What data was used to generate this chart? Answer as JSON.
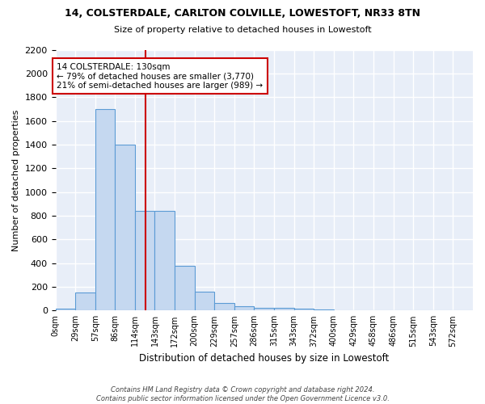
{
  "title1": "14, COLSTERDALE, CARLTON COLVILLE, LOWESTOFT, NR33 8TN",
  "title2": "Size of property relative to detached houses in Lowestoft",
  "xlabel": "Distribution of detached houses by size in Lowestoft",
  "ylabel": "Number of detached properties",
  "bar_labels": [
    "0sqm",
    "29sqm",
    "57sqm",
    "86sqm",
    "114sqm",
    "143sqm",
    "172sqm",
    "200sqm",
    "229sqm",
    "257sqm",
    "286sqm",
    "315sqm",
    "343sqm",
    "372sqm",
    "400sqm",
    "429sqm",
    "458sqm",
    "486sqm",
    "515sqm",
    "543sqm",
    "572sqm"
  ],
  "bar_values": [
    15,
    150,
    1700,
    1400,
    840,
    840,
    380,
    160,
    65,
    35,
    25,
    22,
    15,
    12,
    0,
    0,
    0,
    0,
    0,
    0,
    0
  ],
  "bar_color": "#c5d8f0",
  "bar_edge_color": "#5b9bd5",
  "fig_bg_color": "#ffffff",
  "ax_bg_color": "#e8eef8",
  "grid_color": "#ffffff",
  "vline_color": "#cc0000",
  "annotation_text": "14 COLSTERDALE: 130sqm\n← 79% of detached houses are smaller (3,770)\n21% of semi-detached houses are larger (989) →",
  "annotation_box_facecolor": "#ffffff",
  "annotation_box_edgecolor": "#cc0000",
  "ylim": [
    0,
    2200
  ],
  "yticks": [
    0,
    200,
    400,
    600,
    800,
    1000,
    1200,
    1400,
    1600,
    1800,
    2000,
    2200
  ],
  "footer1": "Contains HM Land Registry data © Crown copyright and database right 2024.",
  "footer2": "Contains public sector information licensed under the Open Government Licence v3.0.",
  "bin_width": 1
}
